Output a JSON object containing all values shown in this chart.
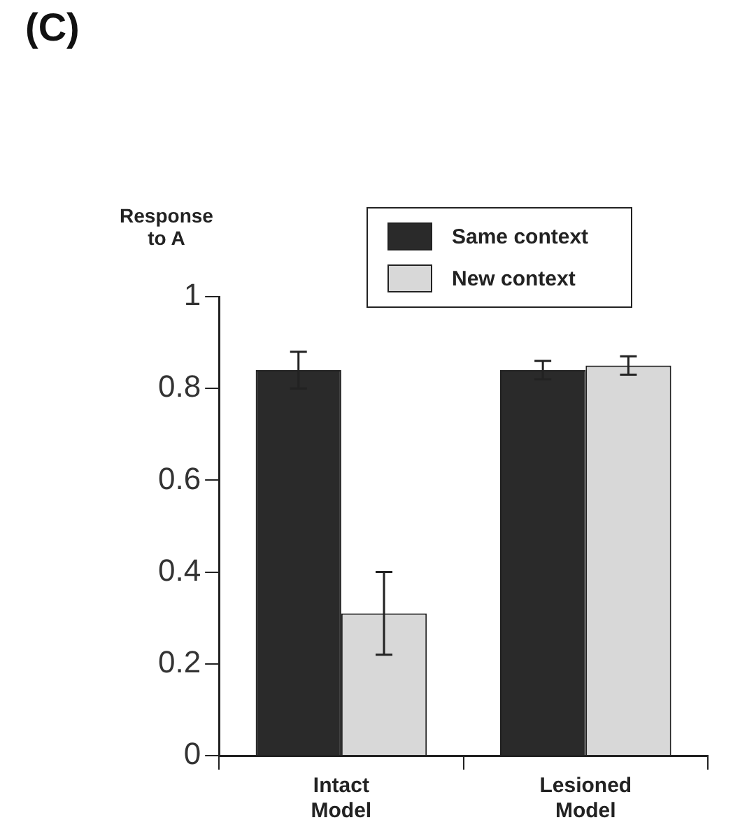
{
  "chart_data": {
    "type": "bar",
    "title": "(C)",
    "ylabel": "Response\nto A",
    "categories": [
      "Intact Model",
      "Lesioned Model"
    ],
    "series": [
      {
        "name": "Same context",
        "color": "#2a2a2a",
        "values": [
          0.84,
          0.84
        ],
        "errors": [
          0.04,
          0.02
        ]
      },
      {
        "name": "New context",
        "color": "#d8d8d8",
        "values": [
          0.31,
          0.85
        ],
        "errors": [
          0.09,
          0.02
        ]
      }
    ],
    "ylim": [
      0,
      1
    ],
    "yticks": [
      0,
      0.2,
      0.4,
      0.6,
      0.8,
      1
    ],
    "grid": false,
    "legend": "top right"
  }
}
